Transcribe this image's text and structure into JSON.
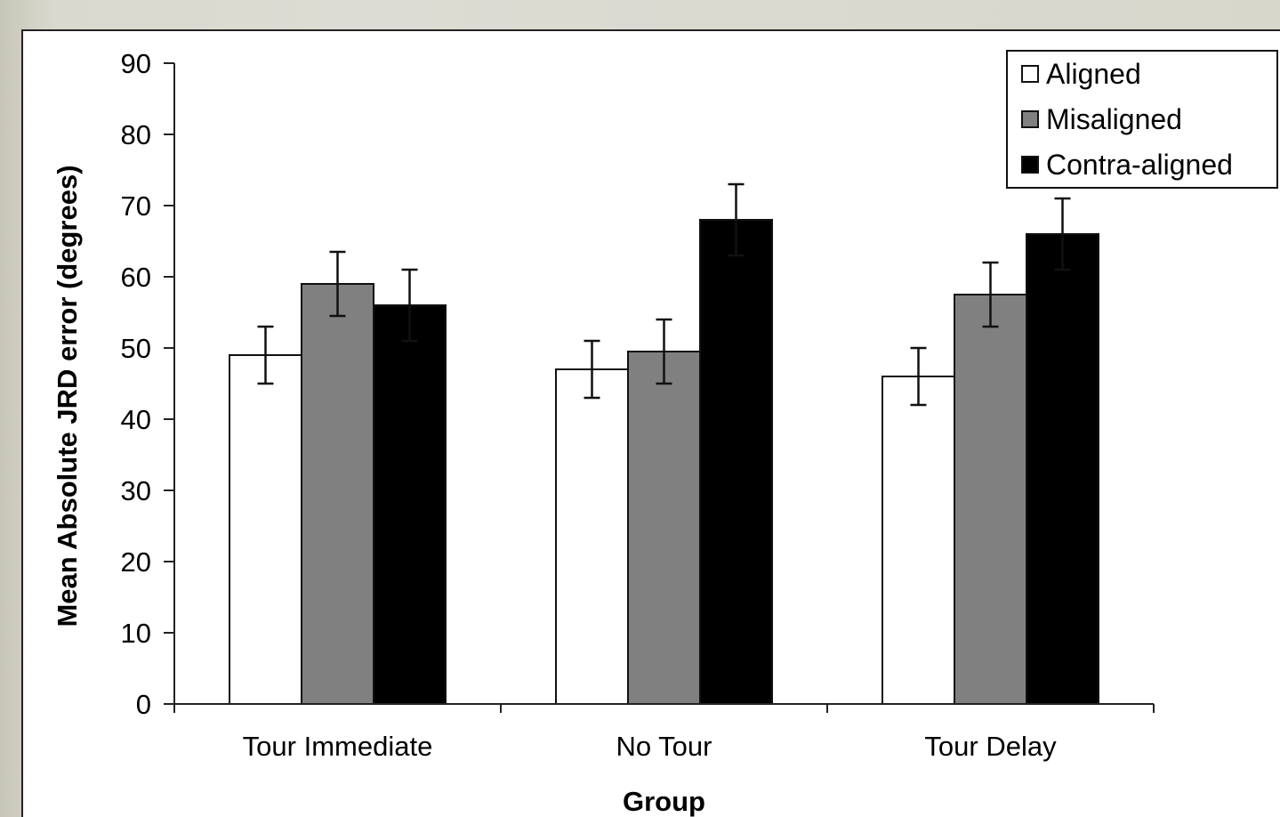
{
  "chart_data": {
    "type": "bar",
    "title": "",
    "xlabel": "Group",
    "ylabel": "Mean Absolute JRD error (degrees)",
    "ylim": [
      0,
      90
    ],
    "yticks": [
      0,
      10,
      20,
      30,
      40,
      50,
      60,
      70,
      80,
      90
    ],
    "categories": [
      "Tour Immediate",
      "No Tour",
      "Tour Delay"
    ],
    "series": [
      {
        "name": "Aligned",
        "color": "#ffffff",
        "values": [
          49,
          47,
          46
        ],
        "error": [
          4,
          4,
          4
        ]
      },
      {
        "name": "Misaligned",
        "color": "#808080",
        "values": [
          59,
          49.5,
          57.5
        ],
        "error": [
          4.5,
          4.5,
          4.5
        ]
      },
      {
        "name": "Contra-aligned",
        "color": "#000000",
        "values": [
          56,
          68,
          66
        ],
        "error": [
          5,
          5,
          5
        ]
      }
    ],
    "legend": {
      "position": "top-right"
    },
    "grid": false
  }
}
